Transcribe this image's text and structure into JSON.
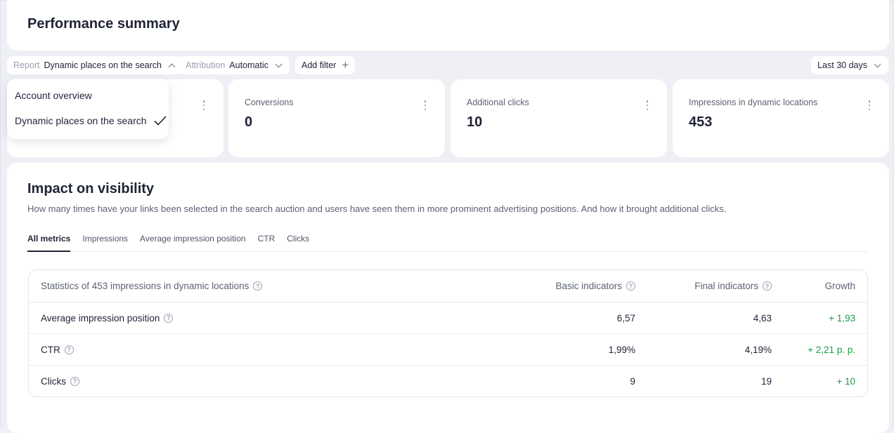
{
  "header": {
    "title": "Performance summary"
  },
  "filters": {
    "report_label": "Report",
    "report_value": "Dynamic places on the search",
    "attribution_label": "Attribution",
    "attribution_value": "Automatic",
    "add_filter": "Add filter",
    "period": "Last 30 days"
  },
  "report_dropdown": {
    "options": [
      "Account overview",
      "Dynamic places on the search"
    ],
    "selected": "Dynamic places on the search"
  },
  "metrics": [
    {
      "title": "Conversions",
      "value": "0"
    },
    {
      "title": "Additional clicks",
      "value": "10"
    },
    {
      "title": "Impressions in dynamic locations",
      "value": "453"
    }
  ],
  "impact": {
    "title": "Impact on visibility",
    "description": "How many times have your links been selected in the search auction and users have seen them in more prominent advertising positions. And how it brought additional clicks.",
    "tabs": [
      "All metrics",
      "Impressions",
      "Average impression position",
      "CTR",
      "Clicks"
    ],
    "active_tab": "All metrics",
    "table": {
      "headers": [
        "Statistics of 453 impressions in dynamic locations",
        "Basic indicators",
        "Final indicators",
        "Growth"
      ],
      "rows": [
        [
          "Average impression position",
          "6,57",
          "4,63",
          "+ 1,93"
        ],
        [
          "CTR",
          "1,99%",
          "4,19%",
          "+ 2,21 p. p."
        ],
        [
          "Clicks",
          "9",
          "19",
          "+ 10"
        ]
      ]
    }
  },
  "colors": {
    "background": "#eef0f5",
    "growth": "#1a9e48",
    "text": "#1f2437"
  }
}
